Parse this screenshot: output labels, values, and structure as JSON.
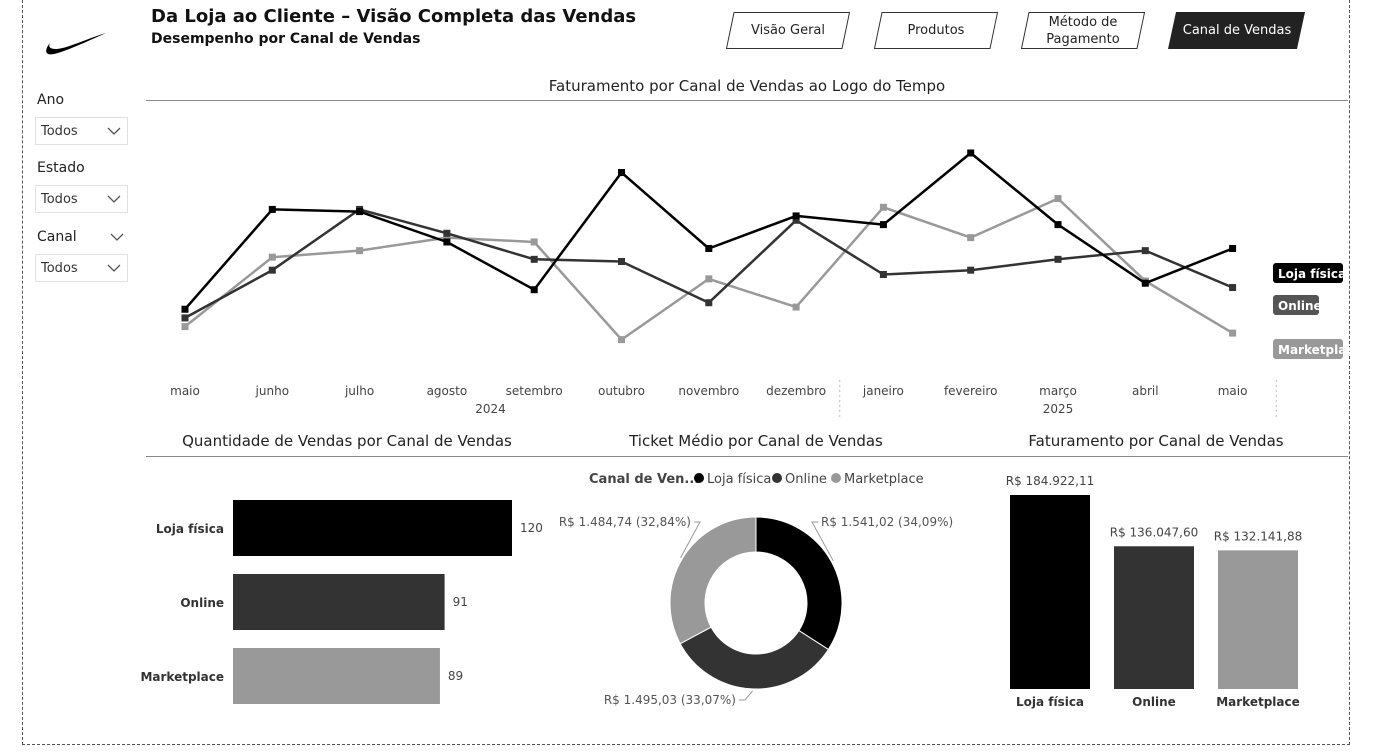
{
  "header": {
    "title": "Da Loja ao Cliente – Visão Completa das Vendas",
    "subtitle": "Desempenho por Canal de Vendas"
  },
  "nav": {
    "tabs": [
      {
        "label": "Visão Geral",
        "active": false
      },
      {
        "label": "Produtos",
        "active": false
      },
      {
        "label": "Método de Pagamento",
        "active": false
      },
      {
        "label": "Canal de Vendas",
        "active": true
      }
    ]
  },
  "filters": {
    "ano": {
      "label": "Ano",
      "value": "Todos"
    },
    "estado": {
      "label": "Estado",
      "value": "Todos"
    },
    "canal": {
      "label": "Canal",
      "value": "Todos"
    }
  },
  "icons": {
    "logo": "swoosh-logo-icon",
    "dropdown": "chevron-down-icon"
  },
  "colors": {
    "loja": "#000000",
    "online": "#333333",
    "marketplace": "#999999"
  },
  "chart_data": [
    {
      "type": "line",
      "title": "Faturamento por Canal de Vendas ao Logo do Tempo",
      "x": [
        "maio",
        "junho",
        "julho",
        "agosto",
        "setembro",
        "outubro",
        "novembro",
        "dezembro",
        "janeiro",
        "fevereiro",
        "março",
        "abril",
        "maio"
      ],
      "year_groups": [
        {
          "label": "2024",
          "start": 0,
          "end": 7
        },
        {
          "label": "2025",
          "start": 8,
          "end": 12
        }
      ],
      "ylim": [
        0,
        100
      ],
      "grid": false,
      "series": [
        {
          "name": "Loja física",
          "color": "#000000",
          "values": [
            28,
            74,
            73,
            59,
            37,
            91,
            56,
            71,
            67,
            100,
            67,
            40,
            56
          ]
        },
        {
          "name": "Online",
          "color": "#333333",
          "values": [
            24,
            46,
            74,
            63,
            51,
            50,
            31,
            69,
            44,
            46,
            51,
            55,
            38
          ]
        },
        {
          "name": "Marketplace",
          "color": "#999999",
          "values": [
            20,
            52,
            55,
            61,
            59,
            14,
            42,
            29,
            75,
            61,
            79,
            41,
            17
          ]
        }
      ],
      "end_labels": [
        "Loja física",
        "Online",
        "Marketplac"
      ]
    },
    {
      "type": "bar",
      "orientation": "horizontal",
      "title": "Quantidade de Vendas por Canal de Vendas",
      "categories": [
        "Loja física",
        "Online",
        "Marketplace"
      ],
      "values": [
        120,
        91,
        89
      ],
      "data_labels": [
        "120",
        "91",
        "89"
      ],
      "colors": [
        "#000000",
        "#333333",
        "#999999"
      ]
    },
    {
      "type": "pie",
      "donut": true,
      "title": "Ticket Médio por Canal de Vendas",
      "legend_title": "Canal de Ven...",
      "legend": [
        "Loja física",
        "Online",
        "Marketplace"
      ],
      "legend_placement": "top",
      "categories": [
        "Loja física",
        "Online",
        "Marketplace"
      ],
      "values": [
        1541.02,
        1495.03,
        1484.74
      ],
      "percents": [
        34.09,
        33.07,
        32.84
      ],
      "data_labels": [
        "R$ 1.541,02 (34,09%)",
        "R$ 1.495,03 (33,07%)",
        "R$ 1.484,74 (32,84%)"
      ],
      "colors": [
        "#000000",
        "#333333",
        "#999999"
      ]
    },
    {
      "type": "bar",
      "orientation": "vertical",
      "title": "Faturamento por Canal de Vendas",
      "categories": [
        "Loja física",
        "Online",
        "Marketplace"
      ],
      "values": [
        184922.11,
        136047.6,
        132141.88
      ],
      "data_labels": [
        "R$ 184.922,11",
        "R$ 136.047,60",
        "R$ 132.141,88"
      ],
      "colors": [
        "#000000",
        "#333333",
        "#999999"
      ]
    }
  ]
}
